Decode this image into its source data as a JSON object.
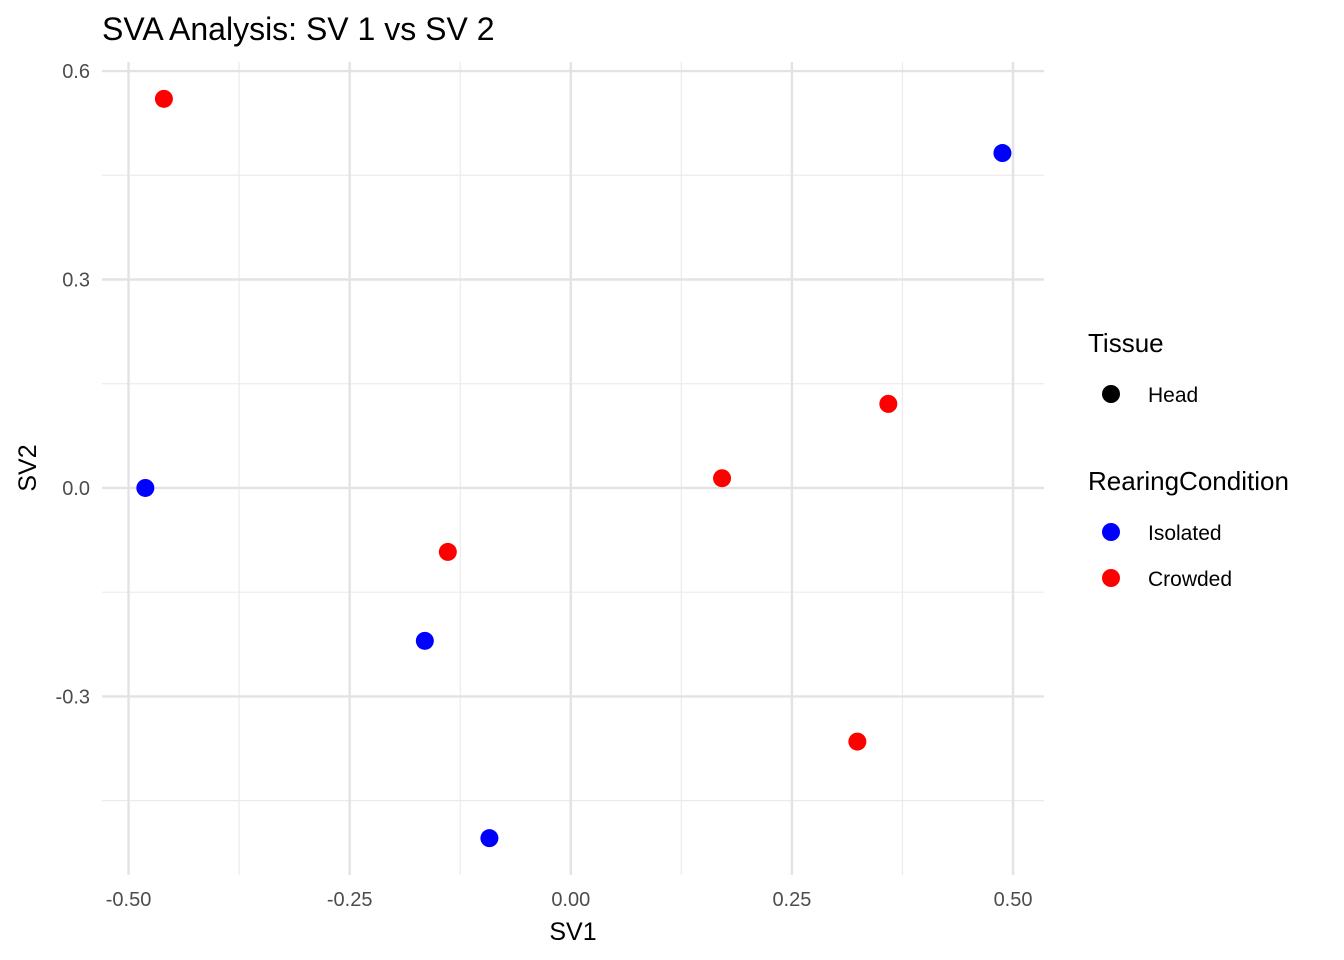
{
  "chart_data": {
    "type": "scatter",
    "title": "SVA Analysis: SV 1  vs SV 2",
    "xlabel": "SV1",
    "ylabel": "SV2",
    "xlim": [
      -0.53,
      0.535
    ],
    "ylim": [
      -0.557,
      0.613
    ],
    "xticks": [
      -0.5,
      -0.25,
      0,
      0.25,
      0.5
    ],
    "xtick_labels": [
      "-0.50",
      "-0.25",
      "0.00",
      "0.25",
      "0.50"
    ],
    "yticks": [
      -0.3,
      0,
      0.3,
      0.6
    ],
    "ytick_labels": [
      "-0.3",
      "0.0",
      "0.3",
      "0.6"
    ],
    "grid": true,
    "legend_position": "right",
    "legends": [
      {
        "title": "Tissue",
        "entries": [
          {
            "label": "Head",
            "color": "#000000"
          }
        ]
      },
      {
        "title": "RearingCondition",
        "entries": [
          {
            "label": "Isolated",
            "color": "#0000FF"
          },
          {
            "label": "Crowded",
            "color": "#FF0000"
          }
        ]
      }
    ],
    "series": [
      {
        "name": "Isolated",
        "color": "#0000FF",
        "points": [
          [
            0.488,
            0.482
          ],
          [
            -0.481,
            0.0
          ],
          [
            -0.165,
            -0.22
          ],
          [
            -0.092,
            -0.504
          ]
        ]
      },
      {
        "name": "Crowded",
        "color": "#FF0000",
        "points": [
          [
            -0.46,
            0.56
          ],
          [
            0.359,
            0.121
          ],
          [
            0.171,
            0.014
          ],
          [
            -0.139,
            -0.092
          ],
          [
            0.324,
            -0.365
          ]
        ]
      }
    ]
  }
}
